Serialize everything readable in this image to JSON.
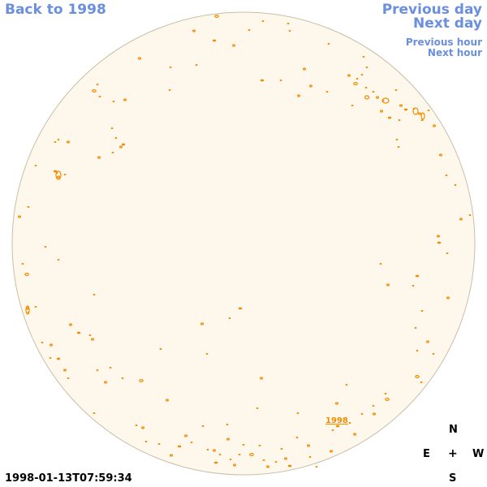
{
  "navigation": {
    "back": "Back to 1998",
    "previous_day": "Previous day",
    "next_day": "Next day",
    "previous_hour": "Previous hour",
    "next_hour": "Next hour"
  },
  "timestamp": "1998-01-13T07:59:34",
  "disk_label": "1998",
  "compass": {
    "north": "N",
    "east": "E",
    "center": "+",
    "west": "W",
    "south": "S"
  },
  "colors": {
    "link": "#6a8fdc",
    "disk_fill": "#fef8ec",
    "disk_outline": "#c8bfa8",
    "spot": "#f08c00"
  }
}
